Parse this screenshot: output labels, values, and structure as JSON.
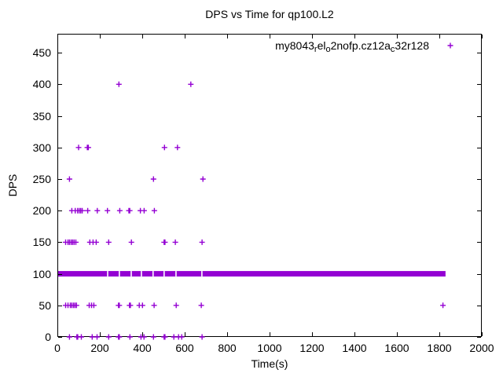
{
  "title": "DPS vs Time for qp100.L2",
  "colors": {
    "marker": "#9400D3",
    "axis": "#000000",
    "background": "#ffffff"
  },
  "legend": {
    "series_name": "my8043_rel_o2nofp.cz12a_c32r128",
    "segments": [
      {
        "text": "my8043",
        "sub": false
      },
      {
        "text": "r",
        "sub": true
      },
      {
        "text": "el",
        "sub": false
      },
      {
        "text": "o",
        "sub": true
      },
      {
        "text": "2nofp.cz12a",
        "sub": false
      },
      {
        "text": "c",
        "sub": true
      },
      {
        "text": "32r128",
        "sub": false
      }
    ],
    "marker_glyph": "plus",
    "position": "top-right-inside"
  },
  "chart_data": {
    "type": "scatter",
    "title": "DPS vs Time for qp100.L2",
    "xlabel": "Time(s)",
    "ylabel": "DPS",
    "xlim": [
      0,
      2000
    ],
    "ylim": [
      0,
      480
    ],
    "xticks": [
      0,
      200,
      400,
      600,
      800,
      1000,
      1200,
      1400,
      1600,
      1800,
      2000
    ],
    "yticks": [
      0,
      50,
      100,
      150,
      200,
      250,
      300,
      350,
      400,
      450
    ],
    "grid": false,
    "marker": "plus",
    "marker_color": "#9400D3",
    "series": [
      {
        "name": "my8043_rel_o2nofp.cz12a_c32r128",
        "levels": [
          {
            "dps": 400,
            "times": [
              290,
              629
            ]
          },
          {
            "dps": 300,
            "times": [
              100,
              141,
              146,
              505,
              566
            ]
          },
          {
            "dps": 250,
            "times": [
              57,
              453,
              686
            ]
          },
          {
            "dps": 200,
            "times": [
              68,
              84,
              95,
              103,
              110,
              117,
              143,
              188,
              236,
              294,
              337,
              341,
              391,
              409,
              457
            ]
          },
          {
            "dps": 150,
            "times": [
              39,
              50,
              57,
              65,
              72,
              79,
              87,
              153,
              168,
              183,
              242,
              349,
              503,
              507,
              556,
              682
            ]
          },
          {
            "dps": 50,
            "times": [
              39,
              50,
              61,
              68,
              76,
              83,
              90,
              150,
              161,
              172,
              288,
              292,
              340,
              344,
              386,
              401,
              456,
              560,
              678,
              1817
            ]
          },
          {
            "dps": 0,
            "times": [
              57,
              92,
              96,
              113,
              164,
              187,
              242,
              288,
              292,
              342,
              394,
              408,
              453,
              503,
              507,
              549,
              571,
              586,
              682
            ]
          }
        ],
        "dense_band": {
          "dps": 100,
          "t_start": 6,
          "t_end": 1818,
          "gap_times": [
            237,
            292,
            348,
            396,
            451,
            503,
            559,
            681
          ],
          "description": "near-continuous samples at ~100 DPS from ~6s to ~1818s rendered as a solid band of overlapping plus markers with brief gaps"
        }
      }
    ]
  }
}
